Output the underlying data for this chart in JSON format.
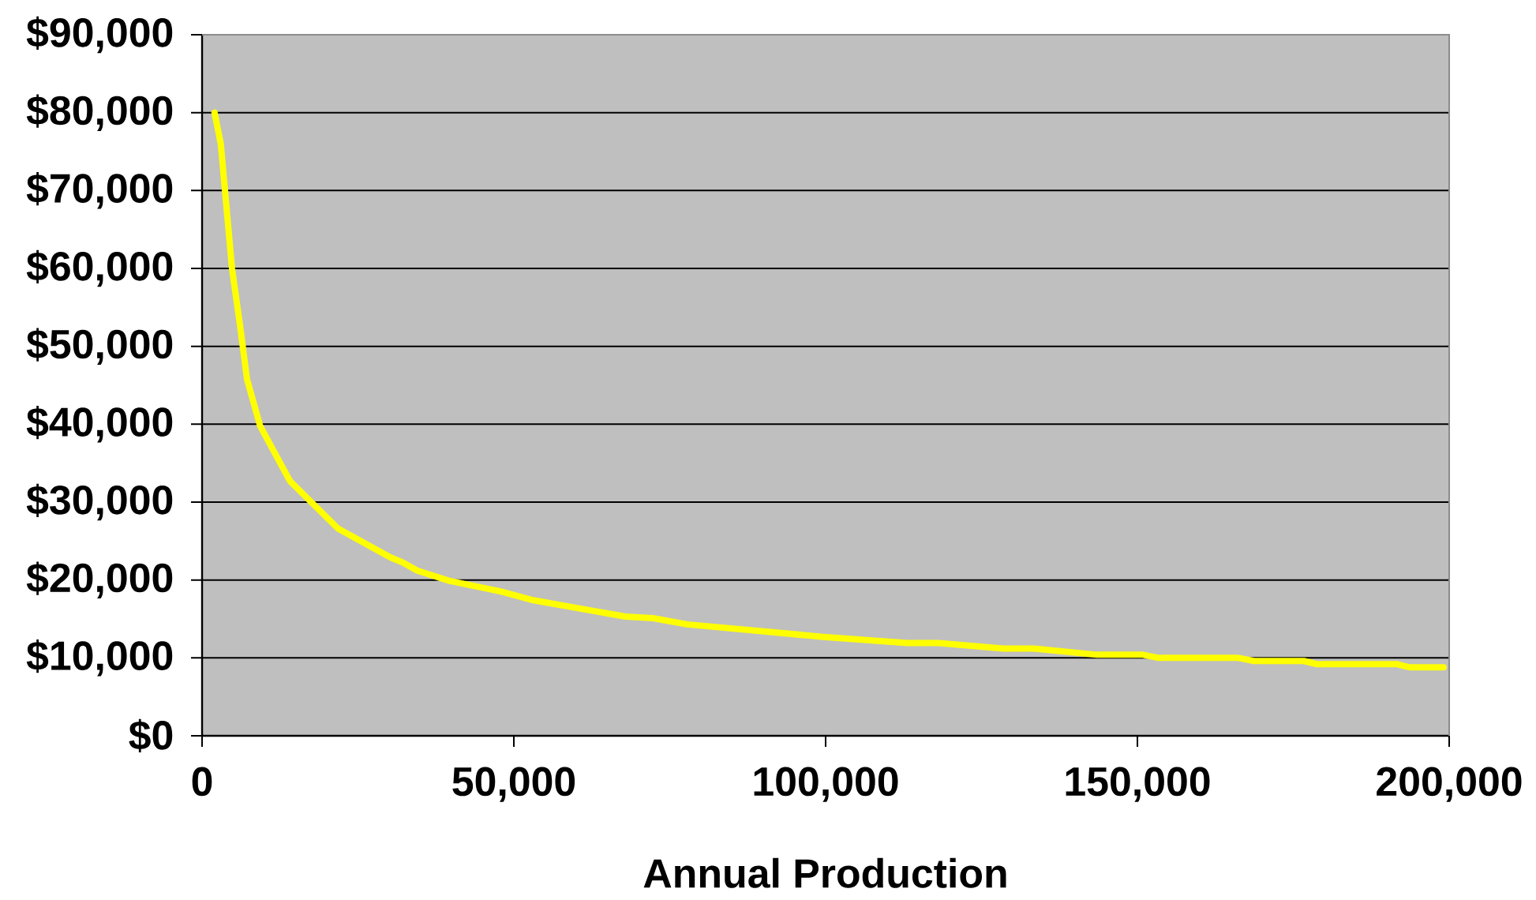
{
  "chart_data": {
    "type": "line",
    "xlabel": "Annual Production",
    "x": [
      2000,
      3000,
      4800,
      6100,
      7200,
      9300,
      14100,
      21800,
      30200,
      32300,
      34500,
      39600,
      48000,
      53100,
      67900,
      72300,
      77800,
      99600,
      113100,
      118100,
      128500,
      133400,
      143500,
      150900,
      153400,
      166200,
      168700,
      176700,
      178700,
      191600,
      193600,
      199100
    ],
    "series": [
      {
        "color": "#ffff00",
        "values": [
          80000,
          76000,
          60000,
          52600,
          45800,
          39800,
          32700,
          26600,
          22900,
          22200,
          21200,
          19900,
          18500,
          17400,
          15300,
          15100,
          14300,
          12700,
          11900,
          11900,
          11200,
          11200,
          10400,
          10400,
          10000,
          10000,
          9600,
          9600,
          9200,
          9200,
          8800,
          8800
        ]
      }
    ],
    "xlim": [
      0,
      200000
    ],
    "ylim": [
      0,
      90000
    ],
    "xticks": [
      {
        "value": 0,
        "label": "0"
      },
      {
        "value": 50000,
        "label": "50,000"
      },
      {
        "value": 100000,
        "label": "100,000"
      },
      {
        "value": 150000,
        "label": "150,000"
      },
      {
        "value": 200000,
        "label": "200,000"
      }
    ],
    "yticks": [
      {
        "value": 0,
        "label": "$0"
      },
      {
        "value": 10000,
        "label": "$10,000"
      },
      {
        "value": 20000,
        "label": "$20,000"
      },
      {
        "value": 30000,
        "label": "$30,000"
      },
      {
        "value": 40000,
        "label": "$40,000"
      },
      {
        "value": 50000,
        "label": "$50,000"
      },
      {
        "value": 60000,
        "label": "$60,000"
      },
      {
        "value": 70000,
        "label": "$70,000"
      },
      {
        "value": 80000,
        "label": "$80,000"
      },
      {
        "value": 90000,
        "label": "$90,000"
      }
    ],
    "grid": "y",
    "marker": "none",
    "line_style": "solid"
  }
}
